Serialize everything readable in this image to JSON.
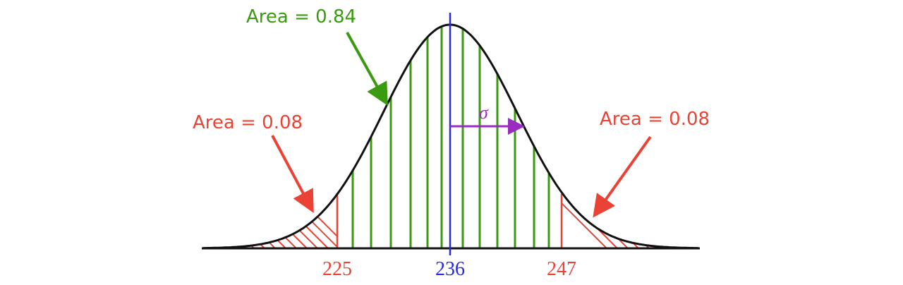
{
  "labels": {
    "center_area": "Area = 0.84",
    "left_area": "Area = 0.08",
    "right_area": "Area = 0.08",
    "sigma": "σ"
  },
  "axis": {
    "left": "225",
    "mean": "236",
    "right": "247"
  }
}
